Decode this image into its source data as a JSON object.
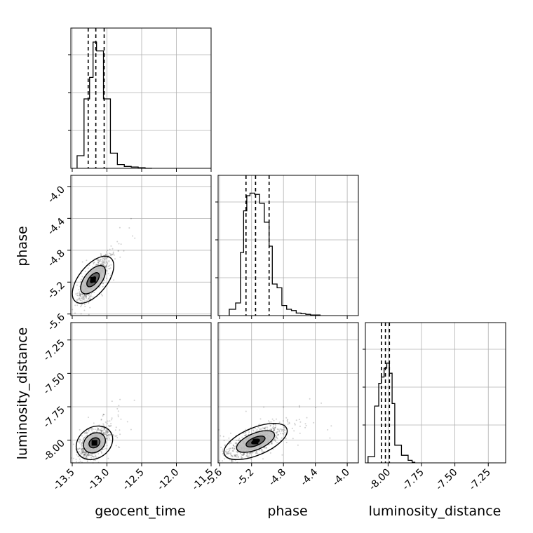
{
  "chart_data": {
    "type": "corner",
    "parameters": [
      "geocent_time",
      "phase",
      "luminosity_distance"
    ],
    "ranges": {
      "geocent_time": [
        -13.52,
        -11.5
      ],
      "phase": [
        -5.62,
        -3.86
      ],
      "luminosity_distance": [
        -8.17,
        -7.12
      ]
    },
    "ticks": {
      "geocent_time": [
        "-13.5",
        "-13.0",
        "-12.5",
        "-12.0",
        "-11.5"
      ],
      "phase": [
        "-5.6",
        "-5.2",
        "-4.8",
        "-4.4",
        "-4.0"
      ],
      "luminosity_distance": [
        "-8.00",
        "-7.75",
        "-7.50",
        "-7.25"
      ]
    },
    "tick_values": {
      "geocent_time": [
        -13.5,
        -13.0,
        -12.5,
        -12.0,
        -11.5
      ],
      "phase": [
        -5.6,
        -5.2,
        -4.8,
        -4.4,
        -4.0
      ],
      "luminosity_distance": [
        -8.0,
        -7.75,
        -7.5,
        -7.25
      ]
    },
    "quantiles": {
      "geocent_time": [
        -13.27,
        -13.16,
        -13.04
      ],
      "phase": [
        -5.27,
        -5.15,
        -4.98
      ],
      "luminosity_distance": [
        -8.05,
        -8.02,
        -7.99
      ]
    },
    "histograms": {
      "geocent_time": {
        "edges": [
          -13.43,
          -13.33,
          -13.25,
          -13.2,
          -13.15,
          -13.05,
          -12.95,
          -12.85,
          -12.75,
          -12.65,
          -12.55,
          -12.45,
          -12.35
        ],
        "heights": [
          0.1,
          0.55,
          0.72,
          1.0,
          0.93,
          0.55,
          0.12,
          0.03,
          0.015,
          0.01,
          0.005,
          0.0
        ]
      },
      "phase": {
        "edges": [
          -5.48,
          -5.4,
          -5.34,
          -5.3,
          -5.26,
          -5.22,
          -5.16,
          -5.1,
          -5.04,
          -4.98,
          -4.94,
          -4.88,
          -4.82,
          -4.76,
          -4.7,
          -4.64,
          -4.58,
          -4.52,
          -4.46,
          -4.4,
          -4.34
        ],
        "heights": [
          0.05,
          0.1,
          0.5,
          0.83,
          0.95,
          0.97,
          0.96,
          0.89,
          0.74,
          0.55,
          0.25,
          0.22,
          0.08,
          0.05,
          0.04,
          0.02,
          0.015,
          0.01,
          0.005,
          0.005
        ]
      },
      "luminosity_distance": {
        "edges": [
          -8.15,
          -8.1,
          -8.07,
          -8.05,
          -8.03,
          -8.01,
          -7.99,
          -7.97,
          -7.95,
          -7.9,
          -7.85,
          -7.82,
          -7.8
        ],
        "heights": [
          0.05,
          0.45,
          0.63,
          0.68,
          0.75,
          0.79,
          0.71,
          0.47,
          0.14,
          0.06,
          0.02,
          0.005
        ]
      }
    },
    "joint": {
      "phase_vs_geocent_time": {
        "center": [
          -13.2,
          -5.17
        ],
        "spread": [
          0.11,
          0.14
        ],
        "rho": 0.85
      },
      "luminosity_distance_vs_geocent_time": {
        "center": [
          -13.18,
          -8.02
        ],
        "spread": [
          0.1,
          0.06
        ],
        "rho": 0.6
      },
      "luminosity_distance_vs_phase": {
        "center": [
          -5.15,
          -8.01
        ],
        "spread": [
          0.17,
          0.06
        ],
        "rho": 0.7
      }
    },
    "grid": true,
    "axis_labels": {
      "x": [
        "geocent_time",
        "phase",
        "luminosity_distance"
      ],
      "y": [
        "phase",
        "luminosity_distance"
      ]
    }
  }
}
